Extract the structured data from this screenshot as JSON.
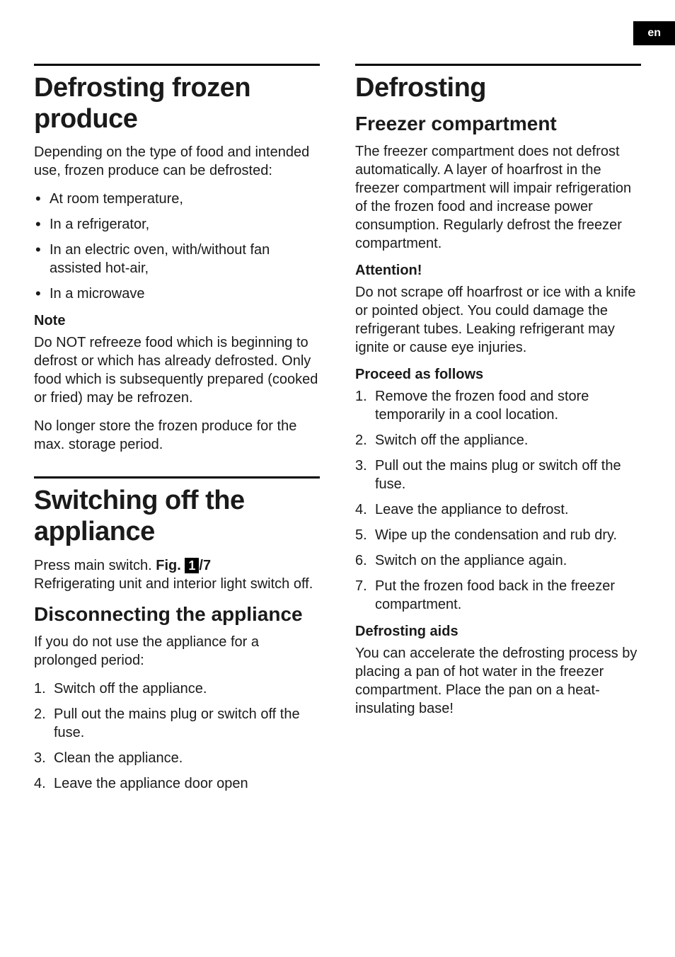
{
  "lang_label": "en",
  "left": {
    "sec1": {
      "title": "Defrosting frozen produce",
      "intro": "Depending on the type of food and intended use, frozen produce can be defrosted:",
      "bullets": [
        "At room temperature,",
        "In a refrigerator,",
        "In an electric oven, with/without fan assisted hot-air,",
        "In a microwave"
      ],
      "note_label": "Note",
      "note_p1": "Do NOT refreeze food which is beginning to defrost or which has already defrosted. Only food which is subsequently prepared (cooked or fried) may be refrozen.",
      "note_p2": "No longer store the frozen produce for the max. storage period."
    },
    "sec2": {
      "title": "Switching off the appliance",
      "p1_a": "Press main switch. ",
      "fig_label": "Fig. ",
      "fig_num": "1",
      "fig_suffix": "/7",
      "p1_b": "Refrigerating unit and interior light switch off.",
      "sub_title": "Disconnecting the appliance",
      "sub_p": "If you do not use the appliance for a prolonged period:",
      "steps": [
        "Switch off the appliance.",
        "Pull out the mains plug or switch off the fuse.",
        "Clean the appliance.",
        "Leave the appliance door open"
      ]
    }
  },
  "right": {
    "sec1": {
      "title": "Defrosting",
      "sub_title": "Freezer compartment",
      "p1": "The freezer compartment does not defrost automatically. A layer of hoarfrost in the freezer compartment will impair refrigeration of the frozen food and increase power consumption. Regularly defrost the freezer compartment.",
      "attn_label": "Attention!",
      "attn_p": "Do not scrape off hoarfrost or ice with a knife or pointed object. You could damage the refrigerant tubes. Leaking refrigerant may ignite or cause eye injuries.",
      "proceed_label": "Proceed as follows",
      "steps": [
        "Remove the frozen food and store temporarily in a cool location.",
        "Switch off the appliance.",
        "Pull out the mains plug or switch off the fuse.",
        "Leave the appliance to defrost.",
        "Wipe up the condensation and rub dry.",
        "Switch on the appliance again.",
        "Put the frozen food back in the freezer compartment."
      ],
      "aids_label": "Defrosting aids",
      "aids_p": "You can accelerate the defrosting process by placing a pan of hot water in the freezer compartment. Place the pan on a heat-insulating base!"
    }
  },
  "styles": {
    "page_bg": "#ffffff",
    "text_color": "#1a1a1a",
    "tag_bg": "#000000",
    "tag_fg": "#ffffff",
    "rule_color": "#000000",
    "h1_fontsize": 38,
    "h2_fontsize": 28,
    "h3_fontsize": 20,
    "body_fontsize": 20
  }
}
